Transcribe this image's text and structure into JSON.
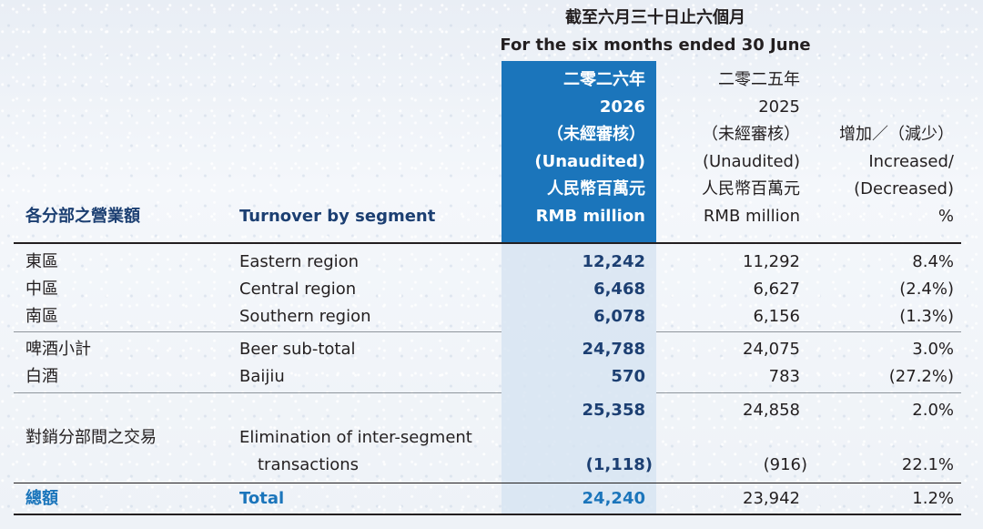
{
  "header": {
    "period_zh": "截至六月三十日止六個月",
    "period_en": "For the six months ended 30 June"
  },
  "columns": {
    "current": [
      "二零二六年",
      "2026",
      "（未經審核）",
      "(Unaudited)",
      "人民幣百萬元",
      "RMB million"
    ],
    "previous": [
      "二零二五年",
      "2025",
      "（未經審核）",
      "(Unaudited)",
      "人民幣百萬元",
      "RMB million"
    ],
    "change": [
      "增加／（減少）",
      "Increased/",
      "(Decreased)",
      "%"
    ]
  },
  "segment_header": {
    "zh": "各分部之營業額",
    "en": "Turnover by segment"
  },
  "rows": [
    {
      "zh": "東區",
      "en": "Eastern region",
      "cur": "12,242",
      "prev": "11,292",
      "chg": "8.4%"
    },
    {
      "zh": "中區",
      "en": "Central region",
      "cur": "6,468",
      "prev": "6,627",
      "chg": "(2.4%)"
    },
    {
      "zh": "南區",
      "en": "Southern region",
      "cur": "6,078",
      "prev": "6,156",
      "chg": "(1.3%)"
    },
    {
      "zh": "啤酒小計",
      "en": "Beer sub-total",
      "cur": "24,788",
      "prev": "24,075",
      "chg": "3.0%"
    },
    {
      "zh": "白酒",
      "en": "Baijiu",
      "cur": "570",
      "prev": "783",
      "chg": "(27.2%)"
    },
    {
      "zh": "",
      "en": "",
      "cur": "25,358",
      "prev": "24,858",
      "chg": "2.0%"
    },
    {
      "zh": "對銷分部間之交易",
      "en": "Elimination of inter-segment",
      "cur": "",
      "prev": "",
      "chg": ""
    },
    {
      "zh": "",
      "en": "transactions",
      "cur": "(1,118)",
      "prev": "(916)",
      "chg": "22.1%"
    }
  ],
  "total": {
    "zh": "總額",
    "en": "Total",
    "cur": "24,240",
    "prev": "23,942",
    "chg": "1.2%"
  }
}
